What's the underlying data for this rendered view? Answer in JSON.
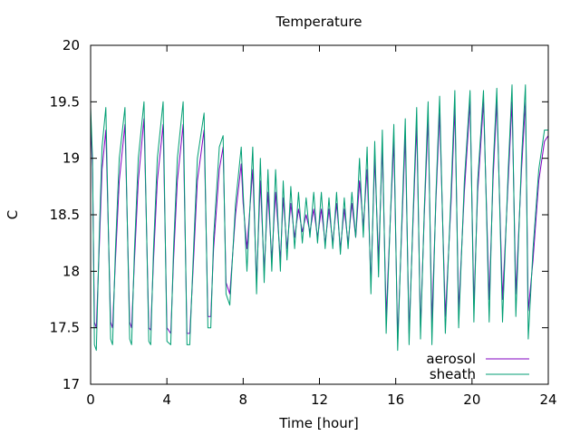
{
  "chart_data": {
    "type": "line",
    "title": "Temperature",
    "xlabel": "Time [hour]",
    "ylabel": "C",
    "xlim": [
      0,
      24
    ],
    "ylim": [
      17,
      20
    ],
    "xticks": [
      0,
      4,
      8,
      12,
      16,
      20,
      24
    ],
    "xtick_labels": [
      "0",
      "4",
      "8",
      "12",
      "16",
      "20",
      "24"
    ],
    "yticks": [
      17,
      17.5,
      18,
      18.5,
      19,
      19.5,
      20
    ],
    "ytick_labels": [
      "17",
      "17.5",
      "18",
      "18.5",
      "19",
      "19.5",
      "20"
    ],
    "grid": false,
    "legend_position": "bottom-right",
    "x": [
      0.0,
      0.1,
      0.2,
      0.3,
      0.45,
      0.6,
      0.8,
      1.05,
      1.15,
      1.3,
      1.5,
      1.8,
      2.05,
      2.15,
      2.3,
      2.5,
      2.8,
      3.05,
      3.15,
      3.3,
      3.5,
      3.8,
      4.0,
      4.2,
      4.35,
      4.55,
      4.85,
      5.05,
      5.2,
      5.4,
      5.6,
      5.95,
      6.15,
      6.3,
      6.45,
      6.75,
      6.95,
      7.1,
      7.3,
      7.6,
      7.9,
      8.0,
      8.2,
      8.5,
      8.7,
      8.9,
      9.1,
      9.3,
      9.5,
      9.7,
      9.95,
      10.1,
      10.3,
      10.5,
      10.7,
      10.9,
      11.1,
      11.3,
      11.5,
      11.7,
      11.9,
      12.1,
      12.3,
      12.5,
      12.7,
      12.9,
      13.1,
      13.3,
      13.5,
      13.7,
      13.9,
      14.1,
      14.3,
      14.5,
      14.7,
      14.9,
      15.1,
      15.3,
      15.5,
      15.7,
      15.9,
      16.1,
      16.3,
      16.5,
      16.7,
      16.9,
      17.1,
      17.3,
      17.5,
      17.7,
      17.9,
      18.1,
      18.3,
      18.6,
      18.9,
      19.1,
      19.3,
      19.6,
      19.9,
      20.1,
      20.3,
      20.6,
      20.9,
      21.1,
      21.3,
      21.6,
      21.9,
      22.1,
      22.3,
      22.6,
      22.8,
      22.95,
      23.2,
      23.5,
      23.8,
      24.0
    ],
    "series": [
      {
        "name": "aerosol",
        "color": "#8000c0",
        "values": [
          19.35,
          18.9,
          17.55,
          17.5,
          18.2,
          18.9,
          19.25,
          17.55,
          17.5,
          18.1,
          18.8,
          19.3,
          17.55,
          17.5,
          18.1,
          18.8,
          19.35,
          17.5,
          17.48,
          18.1,
          18.8,
          19.3,
          17.5,
          17.45,
          18.1,
          18.8,
          19.3,
          17.45,
          17.45,
          18.1,
          18.8,
          19.25,
          17.6,
          17.6,
          18.2,
          18.9,
          19.1,
          17.9,
          17.8,
          18.5,
          18.95,
          18.6,
          18.2,
          18.9,
          17.9,
          18.8,
          18.0,
          18.7,
          18.1,
          18.7,
          18.1,
          18.65,
          18.2,
          18.6,
          18.3,
          18.55,
          18.35,
          18.5,
          18.35,
          18.55,
          18.3,
          18.55,
          18.25,
          18.55,
          18.25,
          18.6,
          18.2,
          18.55,
          18.25,
          18.6,
          18.3,
          18.8,
          18.4,
          18.9,
          17.9,
          19.0,
          18.1,
          19.1,
          17.6,
          18.4,
          19.15,
          17.4,
          18.3,
          19.2,
          17.45,
          18.4,
          19.3,
          17.5,
          18.5,
          19.35,
          17.55,
          18.6,
          19.4,
          17.6,
          18.6,
          19.45,
          17.65,
          18.7,
          19.5,
          17.7,
          18.7,
          19.5,
          17.75,
          18.8,
          19.5,
          17.75,
          18.8,
          19.5,
          17.8,
          18.9,
          19.5,
          17.65,
          18.1,
          18.8,
          19.15,
          19.2
        ]
      },
      {
        "name": "sheath",
        "color": "#009e73",
        "values": [
          19.45,
          19.0,
          17.35,
          17.3,
          18.3,
          19.1,
          19.45,
          17.4,
          17.35,
          18.2,
          19.0,
          19.45,
          17.4,
          17.35,
          18.2,
          19.0,
          19.5,
          17.38,
          17.35,
          18.2,
          19.0,
          19.5,
          17.38,
          17.35,
          18.2,
          19.0,
          19.5,
          17.35,
          17.35,
          18.2,
          19.0,
          19.4,
          17.5,
          17.5,
          18.3,
          19.1,
          19.2,
          17.8,
          17.7,
          18.6,
          19.1,
          18.7,
          18.0,
          19.1,
          17.8,
          19.0,
          17.9,
          18.9,
          18.0,
          18.9,
          18.0,
          18.8,
          18.1,
          18.75,
          18.2,
          18.7,
          18.25,
          18.65,
          18.3,
          18.7,
          18.25,
          18.7,
          18.2,
          18.65,
          18.2,
          18.7,
          18.15,
          18.65,
          18.2,
          18.7,
          18.3,
          19.0,
          18.3,
          19.1,
          17.8,
          19.15,
          17.95,
          19.25,
          17.45,
          18.4,
          19.3,
          17.3,
          18.35,
          19.35,
          17.35,
          18.45,
          19.45,
          17.4,
          18.55,
          19.5,
          17.35,
          18.65,
          19.55,
          17.45,
          18.7,
          19.6,
          17.5,
          18.8,
          19.6,
          17.55,
          18.8,
          19.6,
          17.55,
          18.9,
          19.62,
          17.55,
          18.9,
          19.65,
          17.6,
          19.0,
          19.65,
          17.4,
          18.2,
          18.9,
          19.25,
          19.25
        ]
      }
    ]
  }
}
